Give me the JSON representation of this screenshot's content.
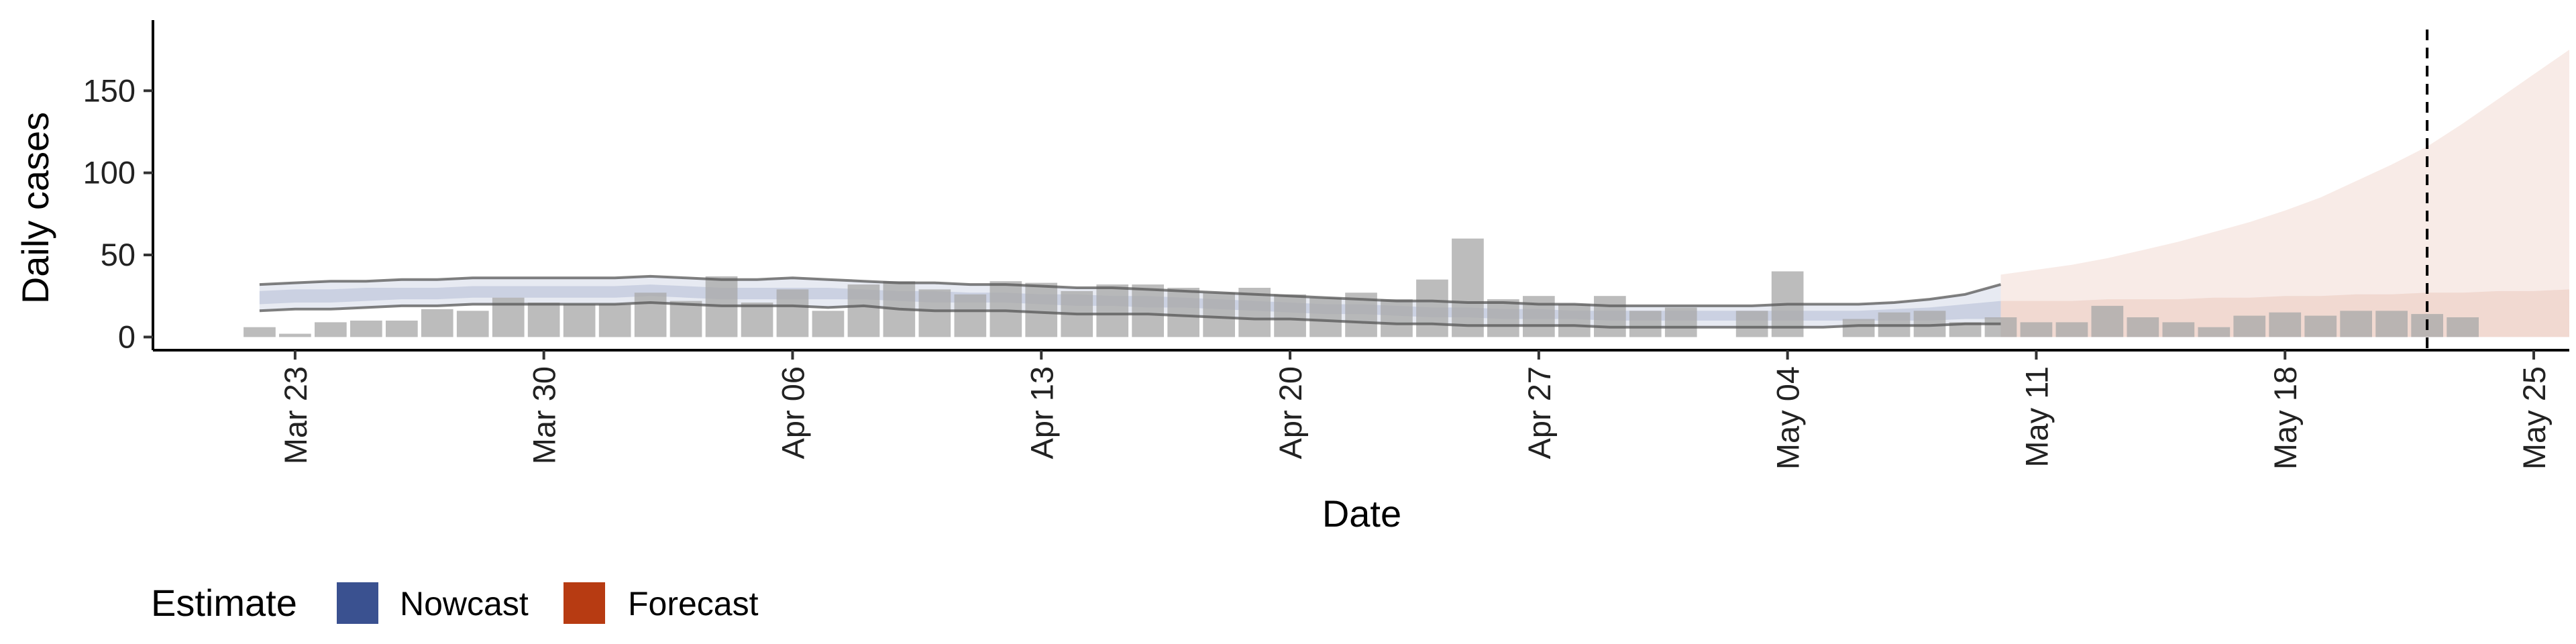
{
  "chart_data": {
    "type": "bar",
    "title": "",
    "xlabel": "Date",
    "ylabel": "Daily cases",
    "x_range": [
      "2020-03-19",
      "2020-05-26"
    ],
    "ylim": [
      -8,
      193
    ],
    "y_ticks": [
      0,
      50,
      100,
      150
    ],
    "x_ticks": [
      {
        "date": "2020-03-23",
        "label": "Mar 23"
      },
      {
        "date": "2020-03-30",
        "label": "Mar 30"
      },
      {
        "date": "2020-04-06",
        "label": "Apr 06"
      },
      {
        "date": "2020-04-13",
        "label": "Apr 13"
      },
      {
        "date": "2020-04-20",
        "label": "Apr 20"
      },
      {
        "date": "2020-04-27",
        "label": "Apr 27"
      },
      {
        "date": "2020-05-04",
        "label": "May 04"
      },
      {
        "date": "2020-05-11",
        "label": "May 11"
      },
      {
        "date": "2020-05-18",
        "label": "May 18"
      },
      {
        "date": "2020-05-25",
        "label": "May 25"
      }
    ],
    "grid": false,
    "legend_position": "bottom-left",
    "vline_date": "2020-05-22",
    "colors": {
      "bars": "#a9a9a9",
      "nowcast": "#3a5190",
      "forecast": "#b73b12",
      "axis": "#000000"
    },
    "observed_cases": {
      "start_date": "2020-03-22",
      "values": [
        6,
        2,
        9,
        10,
        10,
        17,
        16,
        24,
        21,
        20,
        20,
        27,
        22,
        37,
        21,
        29,
        16,
        32,
        34,
        29,
        26,
        34,
        33,
        28,
        32,
        32,
        30,
        27,
        30,
        26,
        24,
        27,
        23,
        35,
        60,
        23,
        25,
        20,
        25,
        16,
        18,
        0,
        16,
        40,
        0,
        11,
        15,
        16,
        9,
        12,
        9,
        9,
        19,
        12,
        9,
        6,
        13,
        15,
        13,
        16,
        16,
        14,
        12
      ]
    },
    "nowcast": {
      "start_date": "2020-03-22",
      "outer_upper": [
        32,
        33,
        34,
        34,
        35,
        35,
        36,
        36,
        36,
        36,
        36,
        37,
        36,
        35,
        35,
        36,
        35,
        34,
        33,
        33,
        32,
        32,
        31,
        30,
        30,
        29,
        28,
        27,
        26,
        25,
        24,
        23,
        22,
        22,
        21,
        21,
        20,
        20,
        19,
        19,
        19,
        19,
        19,
        20,
        20,
        20,
        21,
        23,
        26,
        32
      ],
      "outer_lower": [
        16,
        17,
        17,
        18,
        19,
        19,
        20,
        20,
        20,
        20,
        20,
        21,
        20,
        19,
        19,
        19,
        18,
        19,
        17,
        16,
        16,
        16,
        15,
        14,
        14,
        14,
        13,
        12,
        11,
        11,
        10,
        9,
        8,
        8,
        7,
        7,
        7,
        7,
        6,
        6,
        6,
        6,
        6,
        6,
        6,
        7,
        7,
        7,
        8,
        8
      ],
      "inner_upper": [
        28,
        29,
        29,
        30,
        30,
        30,
        31,
        31,
        31,
        31,
        31,
        32,
        31,
        30,
        30,
        30,
        30,
        29,
        28,
        28,
        27,
        27,
        26,
        26,
        25,
        25,
        24,
        23,
        22,
        21,
        20,
        20,
        19,
        18,
        18,
        17,
        17,
        16,
        16,
        16,
        16,
        16,
        16,
        16,
        16,
        16,
        17,
        18,
        20,
        22
      ],
      "inner_lower": [
        20,
        21,
        21,
        22,
        23,
        23,
        24,
        24,
        24,
        24,
        24,
        25,
        24,
        23,
        23,
        23,
        23,
        23,
        22,
        21,
        21,
        21,
        20,
        19,
        19,
        18,
        18,
        17,
        16,
        15,
        14,
        14,
        13,
        12,
        12,
        11,
        11,
        11,
        10,
        10,
        10,
        10,
        10,
        10,
        10,
        10,
        10,
        10,
        11,
        11
      ]
    },
    "forecast": {
      "start_date": "2020-05-10",
      "upper": [
        38,
        41,
        44,
        48,
        53,
        58,
        64,
        70,
        77,
        85,
        95,
        105,
        116,
        130,
        145,
        160,
        175
      ],
      "lower": [
        0,
        0,
        0,
        0,
        0,
        0,
        0,
        0,
        0,
        0,
        0,
        0,
        0,
        0,
        0,
        0,
        0
      ],
      "inner_upper": [
        22,
        22,
        22,
        23,
        23,
        23,
        24,
        24,
        25,
        25,
        26,
        26,
        27,
        27,
        28,
        28,
        29
      ]
    }
  },
  "legend": {
    "title": "Estimate",
    "items": [
      {
        "label": "Nowcast",
        "color": "#3a5190"
      },
      {
        "label": "Forecast",
        "color": "#b73b12"
      }
    ]
  }
}
